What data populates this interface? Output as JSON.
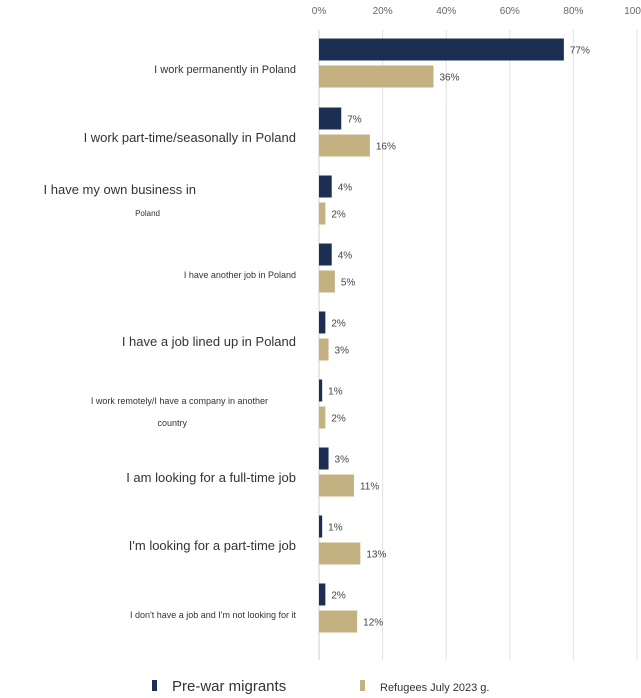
{
  "chart_data": {
    "type": "bar",
    "orientation": "horizontal",
    "x_ticks": [
      "0%",
      "20%",
      "40%",
      "60%",
      "80%",
      "100%"
    ],
    "xlim": [
      0,
      100
    ],
    "grid": true,
    "legend_position": "bottom",
    "categories": [
      "I work permanently in Poland",
      "I work part-time/seasonally in Poland",
      "I have my own business in Poland",
      "I have another job in Poland",
      "I have a job lined up in Poland",
      "I work remotely/I have a company in another country",
      "I am looking for a full-time job",
      "I'm looking for a part-time job",
      "I don't have a job and I'm not looking for it"
    ],
    "series": [
      {
        "name": "Pre-war migrants",
        "color": "#1c2e52",
        "values": [
          77,
          7,
          4,
          4,
          2,
          1,
          3,
          1,
          2
        ],
        "labels": [
          "77%",
          "7%",
          "4%",
          "4%",
          "2%",
          "1%",
          "3%",
          "1%",
          "2%"
        ]
      },
      {
        "name": "Refugees July 2023 g.",
        "color": "#c4b182",
        "values": [
          36,
          16,
          2,
          5,
          3,
          2,
          11,
          13,
          12
        ],
        "labels": [
          "36%",
          "16%",
          "2%",
          "5%",
          "3%",
          "2%",
          "11%",
          "13%",
          "12%"
        ]
      }
    ]
  }
}
